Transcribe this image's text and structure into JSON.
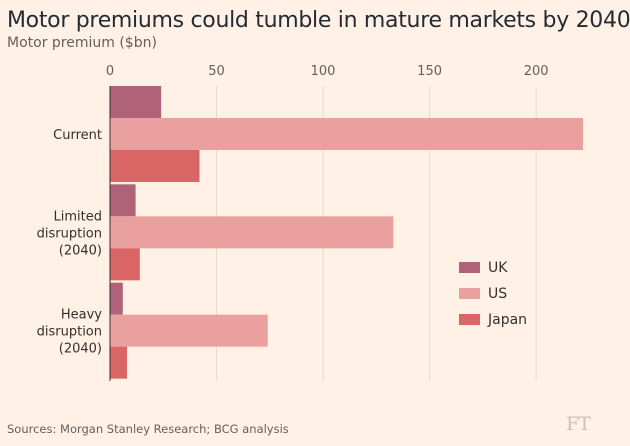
{
  "title": "Motor premiums could tumble in mature markets by 2040",
  "subtitle": "Motor premium ($bn)",
  "source": "Sources: Morgan Stanley Research; BCG analysis",
  "logo": "FT",
  "chart_data": {
    "type": "bar",
    "orientation": "horizontal",
    "categories": [
      [
        "Current"
      ],
      [
        "Limited",
        "disruption",
        "(2040)"
      ],
      [
        "Heavy",
        "disruption",
        "(2040)"
      ]
    ],
    "series": [
      {
        "name": "UK",
        "color": "#b06378",
        "values": [
          24,
          12,
          6
        ]
      },
      {
        "name": "US",
        "color": "#eba0a0",
        "values": [
          222,
          133,
          74
        ]
      },
      {
        "name": "Japan",
        "color": "#d96664",
        "values": [
          42,
          14,
          8
        ]
      }
    ],
    "xlim": [
      0,
      222
    ],
    "xticks": [
      0,
      50,
      100,
      150,
      200
    ],
    "grid": true,
    "legend_position": "right"
  }
}
